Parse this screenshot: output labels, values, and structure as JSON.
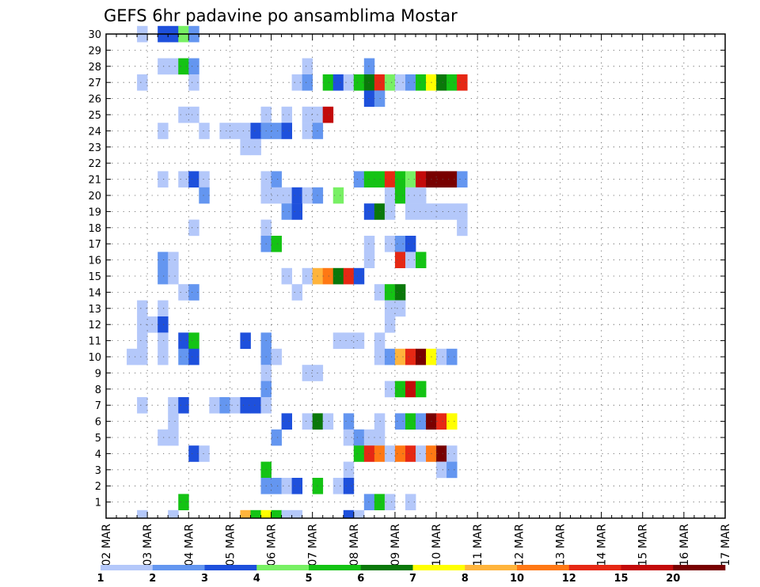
{
  "chart_data": {
    "type": "heatmap",
    "title": "GEFS 6hr padavine po ansamblima Mostar",
    "x_ticks": [
      "02 MAR",
      "03 MAR",
      "04 MAR",
      "05 MAR",
      "06 MAR",
      "07 MAR",
      "08 MAR",
      "09 MAR",
      "10 MAR",
      "11 MAR",
      "12 MAR",
      "13 MAR",
      "14 MAR",
      "15 MAR",
      "16 MAR",
      "17 MAR"
    ],
    "x_range_days": [
      2,
      17
    ],
    "members": [
      1,
      2,
      3,
      4,
      5,
      6,
      7,
      8,
      9,
      10,
      11,
      12,
      13,
      14,
      15,
      16,
      17,
      18,
      19,
      20,
      21,
      22,
      23,
      24,
      25,
      26,
      27,
      28,
      29,
      30
    ],
    "grid": true,
    "legend": {
      "position": "bottom",
      "labels": [
        "1",
        "2",
        "3",
        "4",
        "5",
        "6",
        "7",
        "8",
        "10",
        "12",
        "15",
        "20"
      ],
      "colors": [
        "#b4c8fa",
        "#6496f0",
        "#1e50dc",
        "#78f064",
        "#14c314",
        "#0a780a",
        "#ffff00",
        "#ffb43c",
        "#ff7814",
        "#e62814",
        "#c30a0a",
        "#780000"
      ]
    },
    "cells_note": "Each cell: [member, time step (6 h since 02 MAR 00 UTC), precipitation class index 0-11]",
    "cells": [
      [
        30,
        3,
        0
      ],
      [
        30,
        5,
        2
      ],
      [
        30,
        6,
        2
      ],
      [
        30,
        7,
        3
      ],
      [
        30,
        8,
        1
      ],
      [
        28,
        5,
        0
      ],
      [
        28,
        6,
        0
      ],
      [
        28,
        7,
        4
      ],
      [
        28,
        8,
        1
      ],
      [
        28,
        19,
        0
      ],
      [
        28,
        25,
        1
      ],
      [
        27,
        3,
        0
      ],
      [
        27,
        8,
        0
      ],
      [
        27,
        18,
        0
      ],
      [
        27,
        19,
        1
      ],
      [
        27,
        21,
        4
      ],
      [
        27,
        22,
        2
      ],
      [
        27,
        23,
        0
      ],
      [
        27,
        24,
        4
      ],
      [
        27,
        25,
        5
      ],
      [
        27,
        26,
        9
      ],
      [
        27,
        27,
        3
      ],
      [
        27,
        28,
        0
      ],
      [
        27,
        29,
        1
      ],
      [
        27,
        30,
        4
      ],
      [
        27,
        31,
        6
      ],
      [
        27,
        32,
        5
      ],
      [
        27,
        33,
        4
      ],
      [
        27,
        34,
        9
      ],
      [
        26,
        25,
        2
      ],
      [
        26,
        26,
        1
      ],
      [
        25,
        7,
        0
      ],
      [
        25,
        8,
        0
      ],
      [
        25,
        15,
        0
      ],
      [
        25,
        17,
        0
      ],
      [
        25,
        19,
        0
      ],
      [
        25,
        20,
        0
      ],
      [
        25,
        21,
        10
      ],
      [
        24,
        5,
        0
      ],
      [
        24,
        9,
        0
      ],
      [
        24,
        11,
        0
      ],
      [
        24,
        12,
        0
      ],
      [
        24,
        13,
        0
      ],
      [
        24,
        14,
        2
      ],
      [
        24,
        15,
        1
      ],
      [
        24,
        16,
        1
      ],
      [
        24,
        17,
        2
      ],
      [
        24,
        19,
        0
      ],
      [
        24,
        20,
        1
      ],
      [
        23,
        13,
        0
      ],
      [
        23,
        14,
        0
      ],
      [
        21,
        5,
        0
      ],
      [
        21,
        7,
        0
      ],
      [
        21,
        8,
        2
      ],
      [
        21,
        9,
        0
      ],
      [
        21,
        15,
        0
      ],
      [
        21,
        16,
        1
      ],
      [
        21,
        24,
        1
      ],
      [
        21,
        25,
        4
      ],
      [
        21,
        26,
        4
      ],
      [
        21,
        27,
        9
      ],
      [
        21,
        28,
        4
      ],
      [
        21,
        29,
        3
      ],
      [
        21,
        30,
        10
      ],
      [
        21,
        31,
        11
      ],
      [
        21,
        32,
        11
      ],
      [
        21,
        33,
        11
      ],
      [
        21,
        34,
        1
      ],
      [
        20,
        9,
        1
      ],
      [
        20,
        15,
        0
      ],
      [
        20,
        16,
        0
      ],
      [
        20,
        17,
        0
      ],
      [
        20,
        18,
        2
      ],
      [
        20,
        19,
        0
      ],
      [
        20,
        20,
        1
      ],
      [
        20,
        22,
        3
      ],
      [
        20,
        27,
        0
      ],
      [
        20,
        28,
        4
      ],
      [
        20,
        29,
        0
      ],
      [
        20,
        30,
        0
      ],
      [
        19,
        17,
        1
      ],
      [
        19,
        18,
        2
      ],
      [
        19,
        25,
        2
      ],
      [
        19,
        26,
        5
      ],
      [
        19,
        27,
        0
      ],
      [
        19,
        29,
        0
      ],
      [
        19,
        30,
        0
      ],
      [
        19,
        31,
        0
      ],
      [
        19,
        32,
        0
      ],
      [
        19,
        33,
        0
      ],
      [
        19,
        34,
        0
      ],
      [
        18,
        8,
        0
      ],
      [
        18,
        15,
        0
      ],
      [
        18,
        34,
        0
      ],
      [
        17,
        15,
        1
      ],
      [
        17,
        16,
        4
      ],
      [
        17,
        25,
        0
      ],
      [
        17,
        27,
        0
      ],
      [
        17,
        28,
        1
      ],
      [
        17,
        29,
        2
      ],
      [
        16,
        5,
        1
      ],
      [
        16,
        6,
        0
      ],
      [
        16,
        25,
        0
      ],
      [
        16,
        28,
        9
      ],
      [
        16,
        29,
        0
      ],
      [
        16,
        30,
        4
      ],
      [
        15,
        5,
        1
      ],
      [
        15,
        6,
        0
      ],
      [
        15,
        17,
        0
      ],
      [
        15,
        19,
        0
      ],
      [
        15,
        20,
        7
      ],
      [
        15,
        21,
        8
      ],
      [
        15,
        22,
        5
      ],
      [
        15,
        23,
        9
      ],
      [
        15,
        24,
        2
      ],
      [
        14,
        7,
        0
      ],
      [
        14,
        8,
        1
      ],
      [
        14,
        18,
        0
      ],
      [
        14,
        26,
        0
      ],
      [
        14,
        27,
        4
      ],
      [
        14,
        28,
        5
      ],
      [
        13,
        3,
        0
      ],
      [
        13,
        5,
        0
      ],
      [
        13,
        27,
        0
      ],
      [
        13,
        28,
        0
      ],
      [
        12,
        3,
        0
      ],
      [
        12,
        4,
        0
      ],
      [
        12,
        5,
        2
      ],
      [
        12,
        27,
        0
      ],
      [
        11,
        3,
        0
      ],
      [
        11,
        5,
        0
      ],
      [
        11,
        7,
        2
      ],
      [
        11,
        8,
        4
      ],
      [
        11,
        13,
        2
      ],
      [
        11,
        15,
        1
      ],
      [
        11,
        22,
        0
      ],
      [
        11,
        23,
        0
      ],
      [
        11,
        24,
        0
      ],
      [
        11,
        26,
        0
      ],
      [
        10,
        2,
        0
      ],
      [
        10,
        3,
        0
      ],
      [
        10,
        5,
        0
      ],
      [
        10,
        7,
        1
      ],
      [
        10,
        8,
        2
      ],
      [
        10,
        15,
        1
      ],
      [
        10,
        16,
        0
      ],
      [
        10,
        26,
        0
      ],
      [
        10,
        27,
        1
      ],
      [
        10,
        28,
        7
      ],
      [
        10,
        29,
        9
      ],
      [
        10,
        30,
        11
      ],
      [
        10,
        31,
        6
      ],
      [
        10,
        32,
        0
      ],
      [
        10,
        33,
        1
      ],
      [
        9,
        15,
        0
      ],
      [
        9,
        19,
        0
      ],
      [
        9,
        20,
        0
      ],
      [
        8,
        15,
        1
      ],
      [
        8,
        27,
        0
      ],
      [
        8,
        28,
        4
      ],
      [
        8,
        29,
        10
      ],
      [
        8,
        30,
        4
      ],
      [
        7,
        3,
        0
      ],
      [
        7,
        6,
        0
      ],
      [
        7,
        7,
        2
      ],
      [
        7,
        10,
        0
      ],
      [
        7,
        11,
        1
      ],
      [
        7,
        12,
        0
      ],
      [
        7,
        13,
        2
      ],
      [
        7,
        14,
        2
      ],
      [
        7,
        15,
        0
      ],
      [
        6,
        6,
        0
      ],
      [
        6,
        17,
        2
      ],
      [
        6,
        19,
        0
      ],
      [
        6,
        20,
        5
      ],
      [
        6,
        21,
        0
      ],
      [
        6,
        23,
        1
      ],
      [
        6,
        26,
        0
      ],
      [
        6,
        28,
        1
      ],
      [
        6,
        29,
        4
      ],
      [
        6,
        30,
        1
      ],
      [
        6,
        31,
        11
      ],
      [
        6,
        32,
        9
      ],
      [
        6,
        33,
        6
      ],
      [
        5,
        5,
        0
      ],
      [
        5,
        6,
        0
      ],
      [
        5,
        16,
        1
      ],
      [
        5,
        23,
        0
      ],
      [
        5,
        24,
        1
      ],
      [
        5,
        25,
        0
      ],
      [
        5,
        26,
        0
      ],
      [
        4,
        8,
        2
      ],
      [
        4,
        9,
        0
      ],
      [
        4,
        24,
        4
      ],
      [
        4,
        25,
        9
      ],
      [
        4,
        26,
        8
      ],
      [
        4,
        27,
        0
      ],
      [
        4,
        28,
        8
      ],
      [
        4,
        29,
        9
      ],
      [
        4,
        30,
        0
      ],
      [
        4,
        31,
        8
      ],
      [
        4,
        32,
        11
      ],
      [
        4,
        33,
        0
      ],
      [
        3,
        15,
        4
      ],
      [
        3,
        23,
        0
      ],
      [
        3,
        32,
        0
      ],
      [
        3,
        33,
        1
      ],
      [
        2,
        15,
        1
      ],
      [
        2,
        16,
        1
      ],
      [
        2,
        17,
        0
      ],
      [
        2,
        18,
        2
      ],
      [
        2,
        20,
        4
      ],
      [
        2,
        22,
        0
      ],
      [
        2,
        23,
        2
      ],
      [
        1,
        7,
        4
      ],
      [
        1,
        25,
        1
      ],
      [
        1,
        26,
        4
      ],
      [
        1,
        27,
        0
      ],
      [
        1,
        29,
        0
      ],
      [
        0,
        3,
        0
      ],
      [
        0,
        6,
        0
      ],
      [
        0,
        13,
        7
      ],
      [
        0,
        14,
        4
      ],
      [
        0,
        15,
        6
      ],
      [
        0,
        16,
        4
      ],
      [
        0,
        17,
        0
      ],
      [
        0,
        18,
        0
      ],
      [
        0,
        23,
        2
      ],
      [
        0,
        24,
        0
      ]
    ]
  }
}
